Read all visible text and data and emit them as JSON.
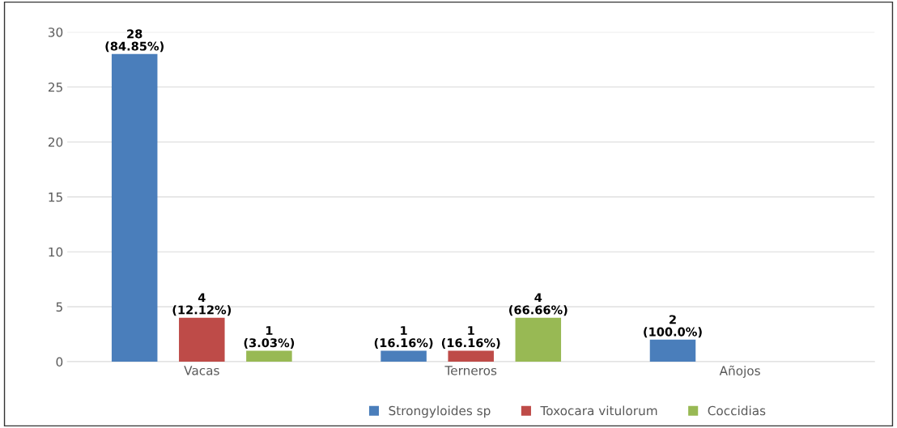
{
  "chart_data": {
    "type": "bar",
    "categories": [
      "Vacas",
      "Terneros",
      "Añojos"
    ],
    "series": [
      {
        "name": "Strongyloides sp",
        "color": "#4a7ebb",
        "values": [
          28,
          1,
          2
        ],
        "value_labels": [
          "28\n(84.85%)",
          "1\n(16.16%)",
          "2\n(100.0%)"
        ]
      },
      {
        "name": "Toxocara vitulorum",
        "color": "#be4b48",
        "values": [
          4,
          1,
          null
        ],
        "value_labels": [
          "4\n(12.12%)",
          "1\n(16.16%)",
          null
        ]
      },
      {
        "name": "Coccidias",
        "color": "#98b954",
        "values": [
          1,
          4,
          null
        ],
        "value_labels": [
          "1\n(3.03%)",
          "4\n(66.66%)",
          null
        ]
      }
    ],
    "ylim": [
      0,
      30
    ],
    "yticks": [
      0,
      5,
      10,
      15,
      20,
      25,
      30
    ],
    "grid": "y",
    "legend": "bottom"
  }
}
